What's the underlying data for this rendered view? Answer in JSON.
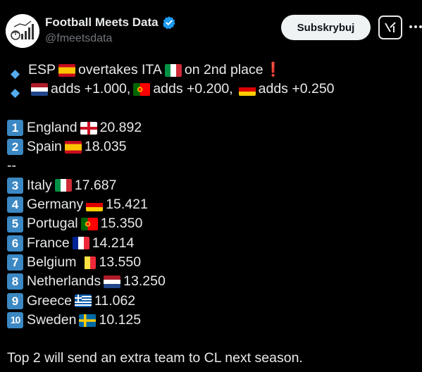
{
  "account": {
    "display_name": "Football Meets Data",
    "handle": "@fmeetsdata",
    "subscribe_label": "Subskrybuj"
  },
  "post": {
    "headline": {
      "part1": "ESP",
      "part2": "overtakes ITA",
      "part3": "on 2nd place",
      "exclaim": "❗"
    },
    "adds": [
      {
        "flag": "netherlands",
        "text": "adds +1.000,"
      },
      {
        "flag": "portugal",
        "text": "adds +0.200,"
      },
      {
        "flag": "germany",
        "text": "adds +0.250"
      }
    ],
    "ranking_top": [
      {
        "rank": "1",
        "country": "England",
        "flag": "england",
        "points": "20.892"
      },
      {
        "rank": "2",
        "country": "Spain",
        "flag": "spain",
        "points": "18.035"
      }
    ],
    "separator": "--",
    "ranking_rest": [
      {
        "rank": "3",
        "country": "Italy",
        "flag": "italy",
        "points": "17.687"
      },
      {
        "rank": "4",
        "country": "Germany",
        "flag": "germany",
        "points": "15.421"
      },
      {
        "rank": "5",
        "country": "Portugal",
        "flag": "portugal",
        "points": "15.350"
      },
      {
        "rank": "6",
        "country": "France",
        "flag": "france",
        "points": "14.214"
      },
      {
        "rank": "7",
        "country": "Belgium",
        "flag": "belgium",
        "points": "13.550"
      },
      {
        "rank": "8",
        "country": "Netherlands",
        "flag": "netherlands",
        "points": "13.250"
      },
      {
        "rank": "9",
        "country": "Greece",
        "flag": "greece",
        "points": "11.062"
      },
      {
        "rank": "10",
        "country": "Sweden",
        "flag": "sweden",
        "points": "10.125"
      }
    ],
    "footer": "Top 2 will send an extra team to CL next season."
  },
  "colors": {
    "background": "#000000",
    "text": "#e7e9ea",
    "muted": "#71767b",
    "verified": "#1d9bf0",
    "keycap": "#3b88c3",
    "diamond": "#55acee"
  }
}
